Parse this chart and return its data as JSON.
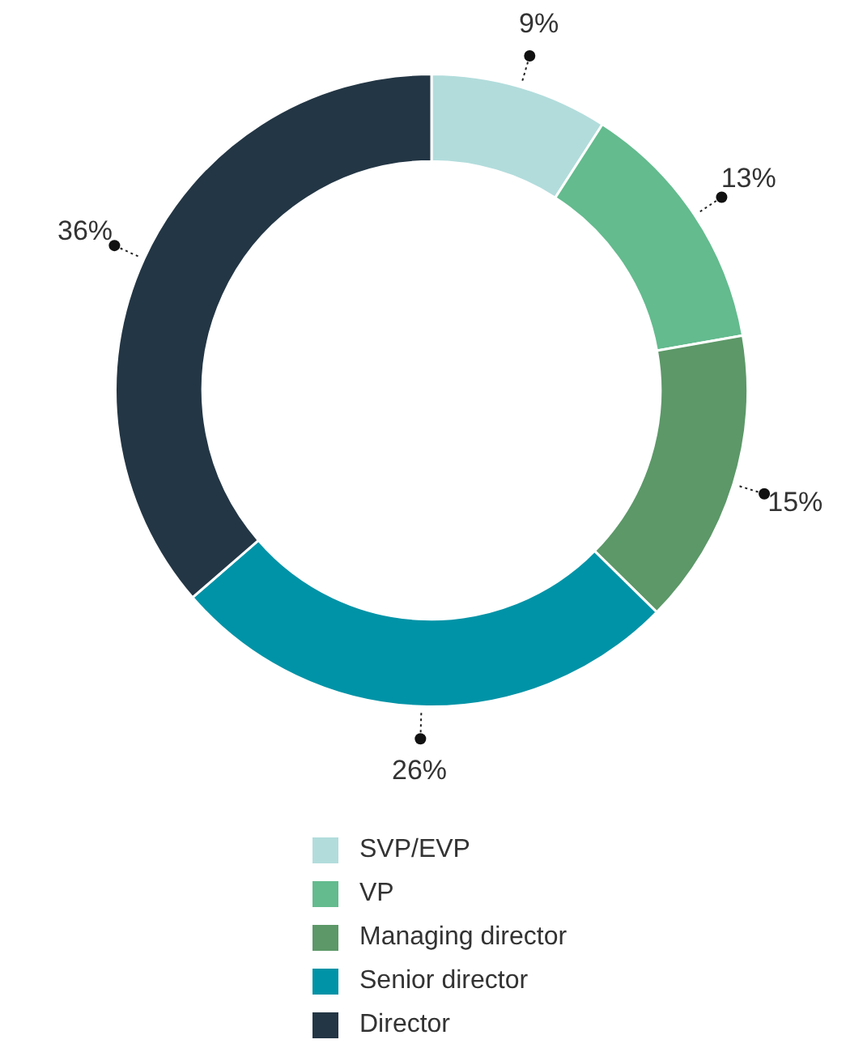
{
  "chart_data": {
    "type": "donut",
    "categories": [
      "SVP/EVP",
      "VP",
      "Managing director",
      "Senior director",
      "Director"
    ],
    "values": [
      9,
      13,
      15,
      26,
      36
    ],
    "value_labels": [
      "9%",
      "13%",
      "15%",
      "26%",
      "36%"
    ],
    "colors": [
      "#b2dcdc",
      "#63bb8e",
      "#5c9868",
      "#0093a7",
      "#233645"
    ],
    "legend": "bottom"
  }
}
